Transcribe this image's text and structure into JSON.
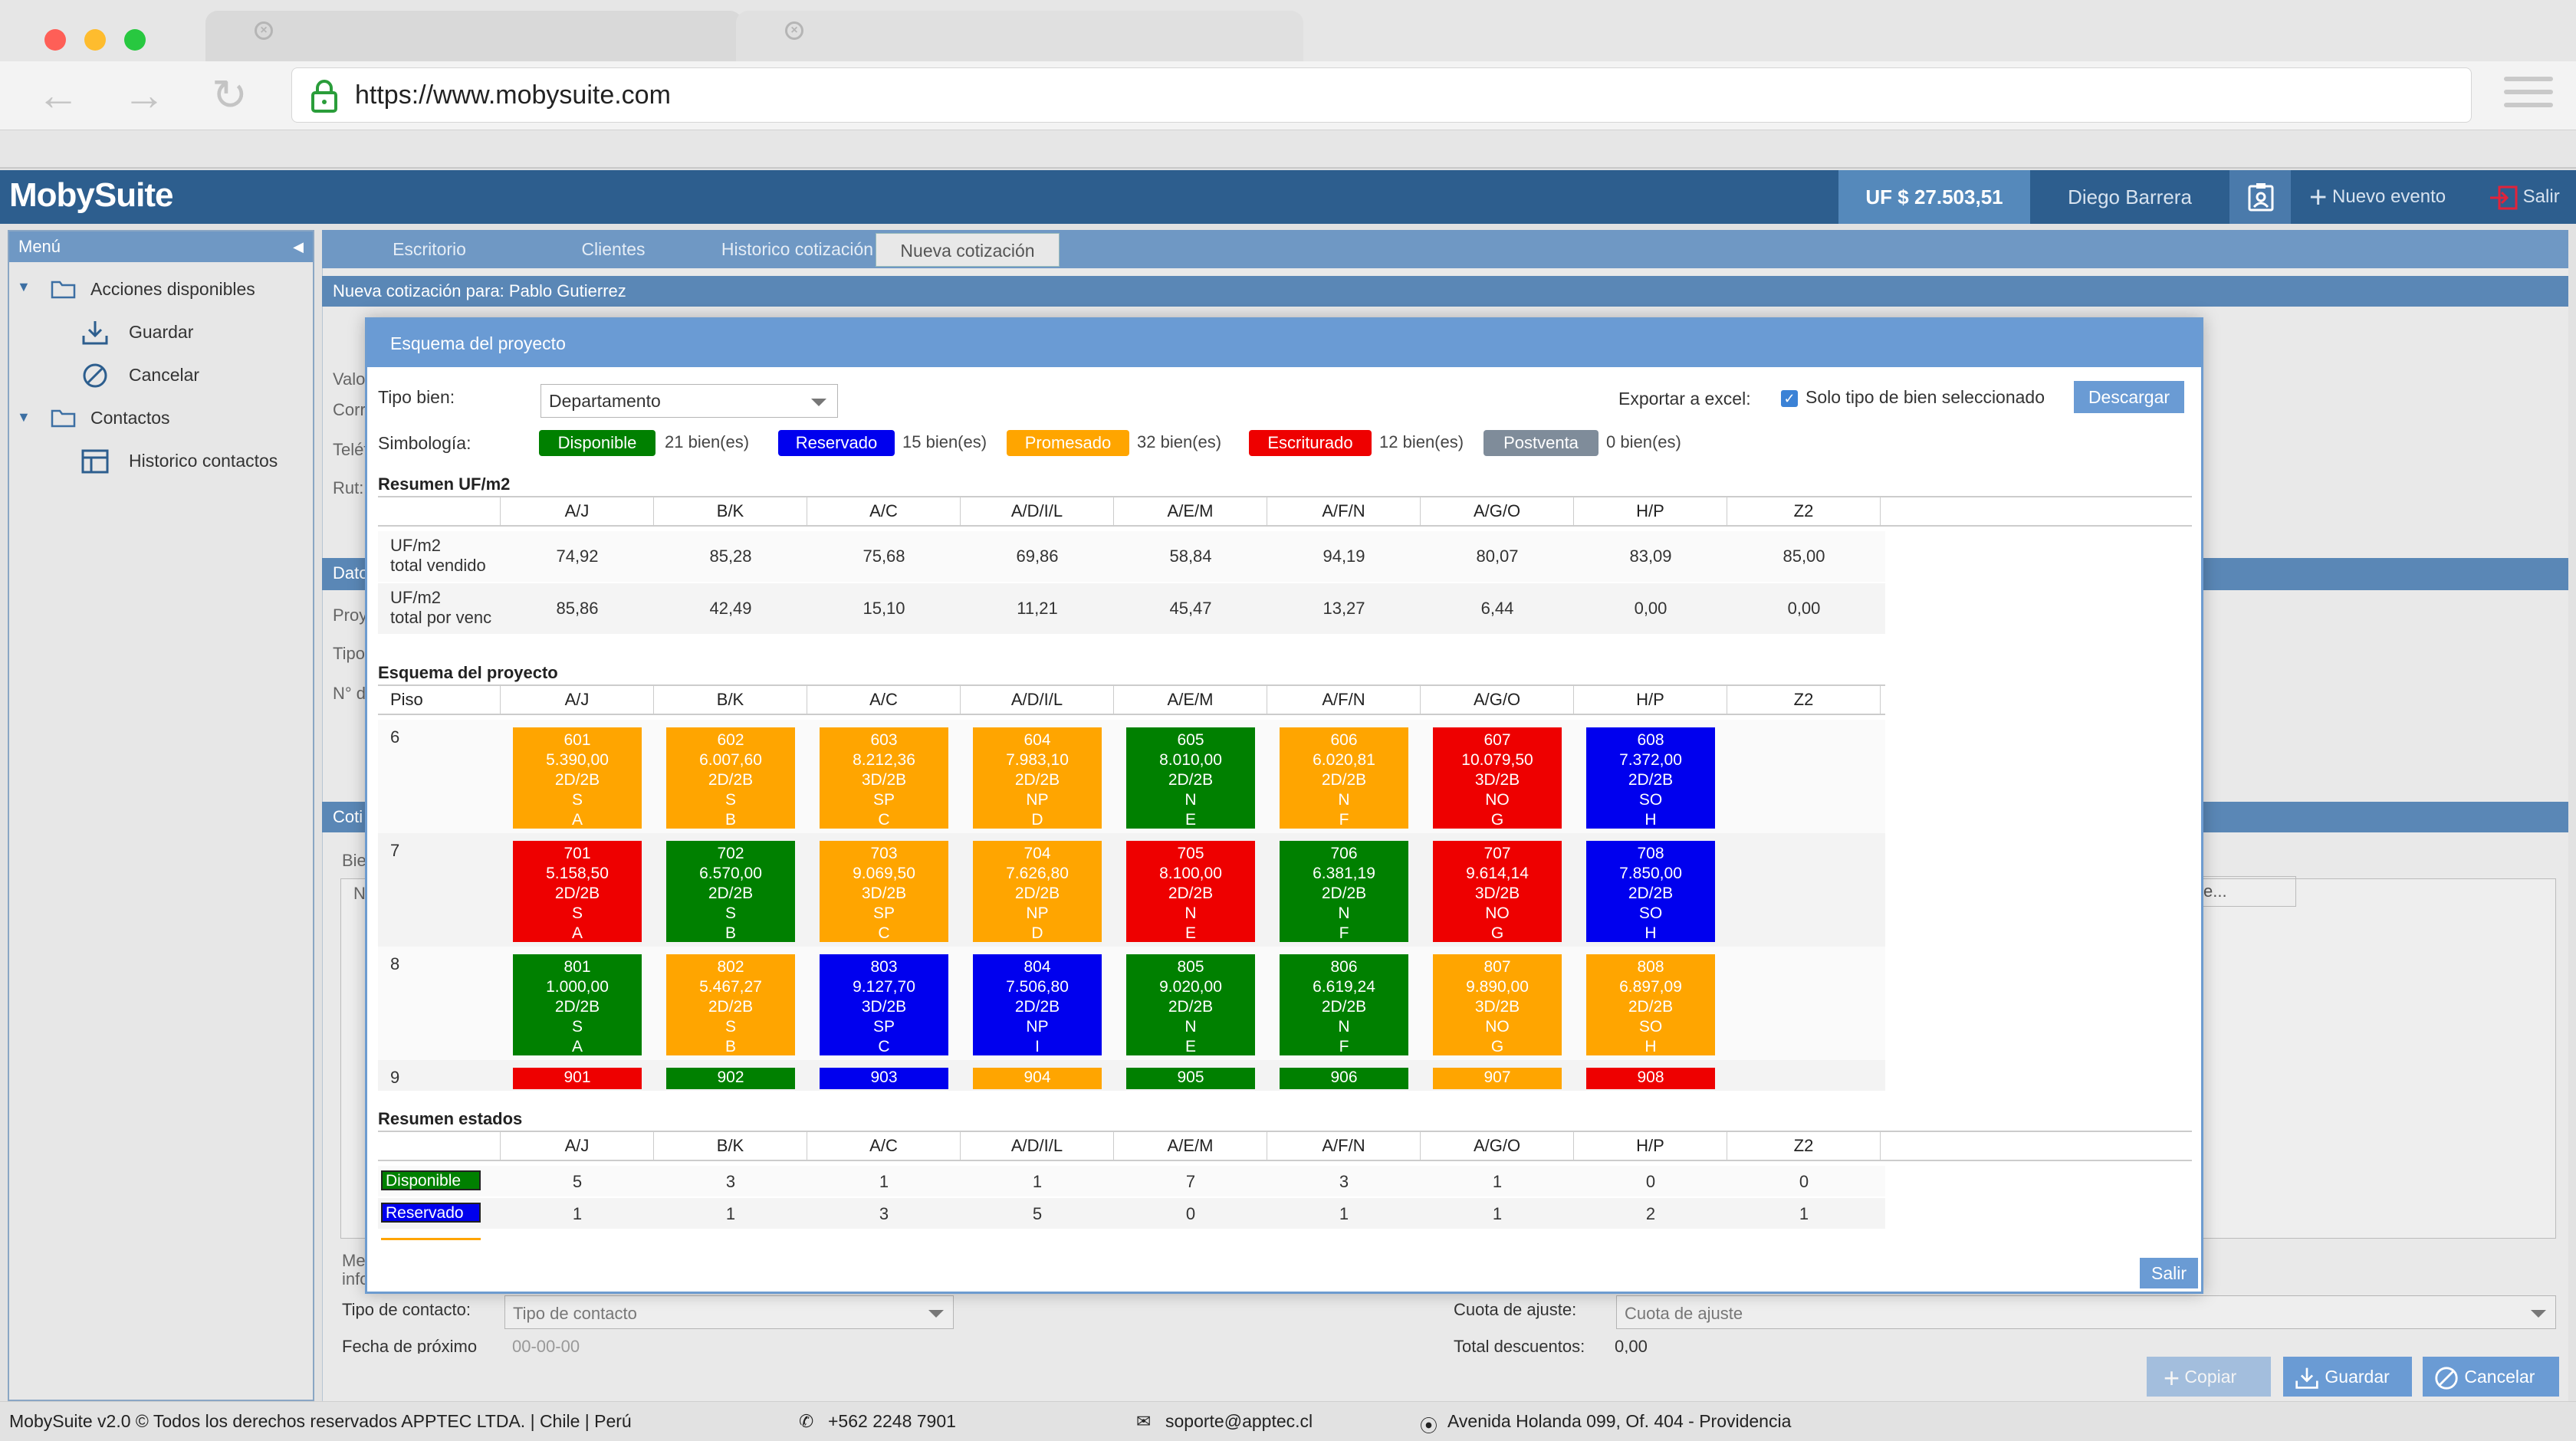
{
  "browser": {
    "url": "https://www.mobysuite.com",
    "colors": {
      "close": "#fe5f57",
      "minimize": "#febc2e",
      "maximize": "#28c840"
    }
  },
  "header": {
    "logo": "MobySuite",
    "uf": "UF $ 27.503,51",
    "user": "Diego Barrera",
    "new_event": "Nuevo evento",
    "exit": "Salir"
  },
  "sidebar": {
    "title": "Menú",
    "groups": [
      {
        "label": "Acciones disponibles",
        "items": [
          "Guardar",
          "Cancelar"
        ]
      },
      {
        "label": "Contactos",
        "items": [
          "Historico contactos"
        ]
      }
    ]
  },
  "tabs": [
    "Escritorio",
    "Clientes",
    "Historico cotización",
    "Nueva cotización"
  ],
  "main": {
    "section1": "Nueva cotización para: Pablo Gutierrez",
    "peek_labels": [
      "Valo",
      "Corr",
      "Teléf",
      "Rut:",
      "Dato",
      "Proy",
      "Tipo",
      "N° d",
      "Coti",
      "Bie",
      "N",
      "Me",
      "info",
      "e..."
    ],
    "contact_type_label": "Tipo de contacto:",
    "contact_type_placeholder": "Tipo de contacto",
    "adjust_label": "Cuota de ajuste:",
    "adjust_placeholder": "Cuota de ajuste",
    "next_date_label": "Fecha de próximo",
    "next_date_value": "00-00-00",
    "total_discounts_label": "Total descuentos:",
    "total_discounts_value": "0,00"
  },
  "actions": {
    "copy": "Copiar",
    "save": "Guardar",
    "cancel": "Cancelar"
  },
  "modal": {
    "title": "Esquema del proyecto",
    "tipo_bien_label": "Tipo bien:",
    "tipo_bien_value": "Departamento",
    "export_label": "Exportar a excel:",
    "only_selected_label": "Solo tipo de bien seleccionado",
    "download": "Descargar",
    "simbologia_label": "Simbología:",
    "legend": [
      {
        "label": "Disponible",
        "count": "21 bien(es)",
        "color": "#008000"
      },
      {
        "label": "Reservado",
        "count": "15 bien(es)",
        "color": "#0000ee"
      },
      {
        "label": "Promesado",
        "count": "32 bien(es)",
        "color": "#ffa500"
      },
      {
        "label": "Escriturado",
        "count": "12 bien(es)",
        "color": "#ee0000"
      },
      {
        "label": "Postventa",
        "count": "0 bien(es)",
        "color": "#7f8c9a"
      }
    ],
    "resumen_uf_title": "Resumen UF/m2",
    "columns": [
      "A/J",
      "B/K",
      "A/C",
      "A/D/I/L",
      "A/E/M",
      "A/F/N",
      "A/G/O",
      "H/P",
      "Z2"
    ],
    "uf_rows": [
      {
        "label1": "UF/m2",
        "label2": "total vendido",
        "values": [
          "74,92",
          "85,28",
          "75,68",
          "69,86",
          "58,84",
          "94,19",
          "80,07",
          "83,09",
          "85,00"
        ]
      },
      {
        "label1": "UF/m2",
        "label2": "total por venc",
        "values": [
          "85,86",
          "42,49",
          "15,10",
          "11,21",
          "45,47",
          "13,27",
          "6,44",
          "0,00",
          "0,00"
        ]
      }
    ],
    "esquema_title": "Esquema del proyecto",
    "piso_label": "Piso",
    "floors": [
      {
        "floor": "6",
        "units": [
          {
            "n": "601",
            "p": "5.390,00",
            "t": "2D/2B",
            "o": "S",
            "c": "A",
            "s": "P"
          },
          {
            "n": "602",
            "p": "6.007,60",
            "t": "2D/2B",
            "o": "S",
            "c": "B",
            "s": "P"
          },
          {
            "n": "603",
            "p": "8.212,36",
            "t": "3D/2B",
            "o": "SP",
            "c": "C",
            "s": "P"
          },
          {
            "n": "604",
            "p": "7.983,10",
            "t": "2D/2B",
            "o": "NP",
            "c": "D",
            "s": "P"
          },
          {
            "n": "605",
            "p": "8.010,00",
            "t": "2D/2B",
            "o": "N",
            "c": "E",
            "s": "D"
          },
          {
            "n": "606",
            "p": "6.020,81",
            "t": "2D/2B",
            "o": "N",
            "c": "F",
            "s": "P"
          },
          {
            "n": "607",
            "p": "10.079,50",
            "t": "3D/2B",
            "o": "NO",
            "c": "G",
            "s": "E"
          },
          {
            "n": "608",
            "p": "7.372,00",
            "t": "2D/2B",
            "o": "SO",
            "c": "H",
            "s": "R"
          }
        ]
      },
      {
        "floor": "7",
        "units": [
          {
            "n": "701",
            "p": "5.158,50",
            "t": "2D/2B",
            "o": "S",
            "c": "A",
            "s": "E"
          },
          {
            "n": "702",
            "p": "6.570,00",
            "t": "2D/2B",
            "o": "S",
            "c": "B",
            "s": "D"
          },
          {
            "n": "703",
            "p": "9.069,50",
            "t": "3D/2B",
            "o": "SP",
            "c": "C",
            "s": "P"
          },
          {
            "n": "704",
            "p": "7.626,80",
            "t": "2D/2B",
            "o": "NP",
            "c": "D",
            "s": "P"
          },
          {
            "n": "705",
            "p": "8.100,00",
            "t": "2D/2B",
            "o": "N",
            "c": "E",
            "s": "E"
          },
          {
            "n": "706",
            "p": "6.381,19",
            "t": "2D/2B",
            "o": "N",
            "c": "F",
            "s": "D"
          },
          {
            "n": "707",
            "p": "9.614,14",
            "t": "3D/2B",
            "o": "NO",
            "c": "G",
            "s": "E"
          },
          {
            "n": "708",
            "p": "7.850,00",
            "t": "2D/2B",
            "o": "SO",
            "c": "H",
            "s": "R"
          }
        ]
      },
      {
        "floor": "8",
        "units": [
          {
            "n": "801",
            "p": "1.000,00",
            "t": "2D/2B",
            "o": "S",
            "c": "A",
            "s": "D"
          },
          {
            "n": "802",
            "p": "5.467,27",
            "t": "2D/2B",
            "o": "S",
            "c": "B",
            "s": "P"
          },
          {
            "n": "803",
            "p": "9.127,70",
            "t": "3D/2B",
            "o": "SP",
            "c": "C",
            "s": "R"
          },
          {
            "n": "804",
            "p": "7.506,80",
            "t": "2D/2B",
            "o": "NP",
            "c": "I",
            "s": "R"
          },
          {
            "n": "805",
            "p": "9.020,00",
            "t": "2D/2B",
            "o": "N",
            "c": "E",
            "s": "D"
          },
          {
            "n": "806",
            "p": "6.619,24",
            "t": "2D/2B",
            "o": "N",
            "c": "F",
            "s": "D"
          },
          {
            "n": "807",
            "p": "9.890,00",
            "t": "3D/2B",
            "o": "NO",
            "c": "G",
            "s": "P"
          },
          {
            "n": "808",
            "p": "6.897,09",
            "t": "2D/2B",
            "o": "SO",
            "c": "H",
            "s": "P"
          }
        ]
      },
      {
        "floor": "9",
        "units": [
          {
            "n": "901",
            "s": "E"
          },
          {
            "n": "902",
            "s": "D"
          },
          {
            "n": "903",
            "s": "R"
          },
          {
            "n": "904",
            "s": "P"
          },
          {
            "n": "905",
            "s": "D"
          },
          {
            "n": "906",
            "s": "D"
          },
          {
            "n": "907",
            "s": "P"
          },
          {
            "n": "908",
            "s": "E"
          }
        ]
      }
    ],
    "resumen_estados_title": "Resumen estados",
    "estados_rows": [
      {
        "label": "Disponible",
        "color": "#008000",
        "values": [
          "5",
          "3",
          "1",
          "1",
          "7",
          "3",
          "1",
          "0",
          "0"
        ]
      },
      {
        "label": "Reservado",
        "color": "#0000ee",
        "values": [
          "1",
          "1",
          "3",
          "5",
          "0",
          "1",
          "1",
          "2",
          "1"
        ]
      }
    ],
    "exit": "Salir"
  },
  "footer": {
    "copyright": "MobySuite v2.0 © Todos los derechos reservados APPTEC LTDA. | Chile | Perú",
    "phone": "+562 2248 7901",
    "email": "soporte@apptec.cl",
    "address": "Avenida Holanda 099, Of. 404 - Providencia"
  }
}
